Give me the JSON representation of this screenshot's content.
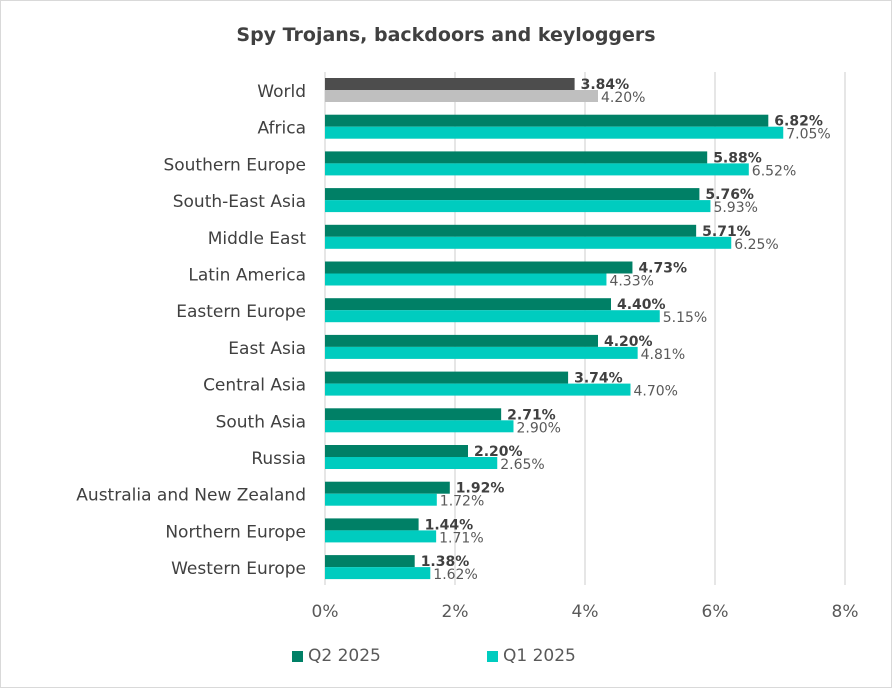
{
  "chart_data": {
    "type": "bar",
    "orientation": "horizontal",
    "title": "Spy Trojans, backdoors and keyloggers",
    "categories": [
      "World",
      "Africa",
      "Southern Europe",
      "South-East Asia",
      "Middle East",
      "Latin America",
      "Eastern Europe",
      "East Asia",
      "Central Asia",
      "South Asia",
      "Russia",
      "Australia and New Zealand",
      "Northern Europe",
      "Western Europe"
    ],
    "series": [
      {
        "name": "Q2 2025",
        "color": "#008066",
        "highlight_color": "#4d4d4d",
        "values": [
          3.84,
          6.82,
          5.88,
          5.76,
          5.71,
          4.73,
          4.4,
          4.2,
          3.74,
          2.71,
          2.2,
          1.92,
          1.44,
          1.38
        ],
        "labels": [
          "3.84%",
          "6.82%",
          "5.88%",
          "5.76%",
          "5.71%",
          "4.73%",
          "4.40%",
          "4.20%",
          "3.74%",
          "2.71%",
          "2.20%",
          "1.92%",
          "1.44%",
          "1.38%"
        ]
      },
      {
        "name": "Q1 2025",
        "color": "#00ccbf",
        "highlight_color": "#bfbfbf",
        "values": [
          4.2,
          7.05,
          6.52,
          5.93,
          6.25,
          4.33,
          5.15,
          4.81,
          4.7,
          2.9,
          2.65,
          1.72,
          1.71,
          1.62
        ],
        "labels": [
          "4.20%",
          "7.05%",
          "6.52%",
          "5.93%",
          "6.25%",
          "4.33%",
          "5.15%",
          "4.81%",
          "4.70%",
          "2.90%",
          "2.65%",
          "1.72%",
          "1.71%",
          "1.62%"
        ]
      }
    ],
    "xlim": [
      0,
      8
    ],
    "xticks": [
      "0%",
      "2%",
      "4%",
      "6%",
      "8%"
    ],
    "grid": "vertical",
    "legend": "bottom"
  }
}
